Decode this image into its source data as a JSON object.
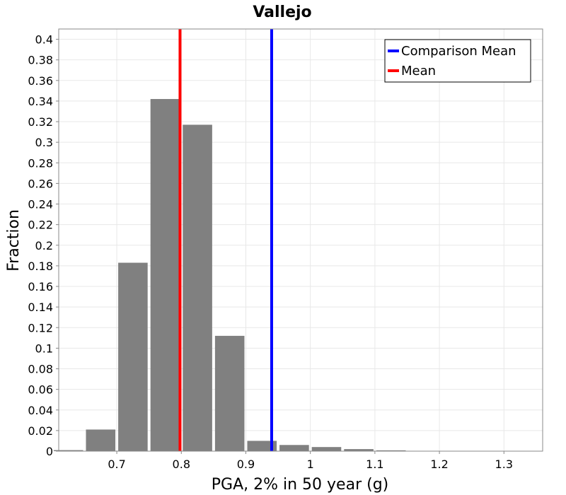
{
  "chart_data": {
    "type": "bar",
    "title": "Vallejo",
    "xlabel": "PGA, 2% in 50 year (g)",
    "ylabel": "Fraction",
    "xlim": [
      0.61,
      1.36
    ],
    "ylim": [
      0,
      0.41
    ],
    "grid": true,
    "legend_position": "top-right",
    "bar_width": 0.05,
    "bar_color": "#808080",
    "x_ticks": [
      "0.7",
      "0.8",
      "0.9",
      "1",
      "1.1",
      "1.2",
      "1.3"
    ],
    "y_ticks": [
      "0",
      "0.02",
      "0.04",
      "0.06",
      "0.08",
      "0.1",
      "0.12",
      "0.14",
      "0.16",
      "0.18",
      "0.2",
      "0.22",
      "0.24",
      "0.26",
      "0.28",
      "0.3",
      "0.32",
      "0.34",
      "0.36",
      "0.38",
      "0.4"
    ],
    "bars": [
      {
        "x": 0.625,
        "value": 0.001
      },
      {
        "x": 0.675,
        "value": 0.021
      },
      {
        "x": 0.725,
        "value": 0.183
      },
      {
        "x": 0.775,
        "value": 0.342
      },
      {
        "x": 0.825,
        "value": 0.317
      },
      {
        "x": 0.875,
        "value": 0.112
      },
      {
        "x": 0.925,
        "value": 0.01
      },
      {
        "x": 0.975,
        "value": 0.006
      },
      {
        "x": 1.025,
        "value": 0.004
      },
      {
        "x": 1.075,
        "value": 0.002
      },
      {
        "x": 1.125,
        "value": 0.0008
      },
      {
        "x": 1.175,
        "value": 0.0003
      },
      {
        "x": 1.225,
        "value": 0.0002
      },
      {
        "x": 1.275,
        "value": 0.0001
      },
      {
        "x": 1.325,
        "value": 0.0001
      }
    ],
    "lines": [
      {
        "name": "Comparison Mean",
        "x": 0.94,
        "color": "#0000ff"
      },
      {
        "name": "Mean",
        "x": 0.798,
        "color": "#ff0000"
      }
    ]
  }
}
